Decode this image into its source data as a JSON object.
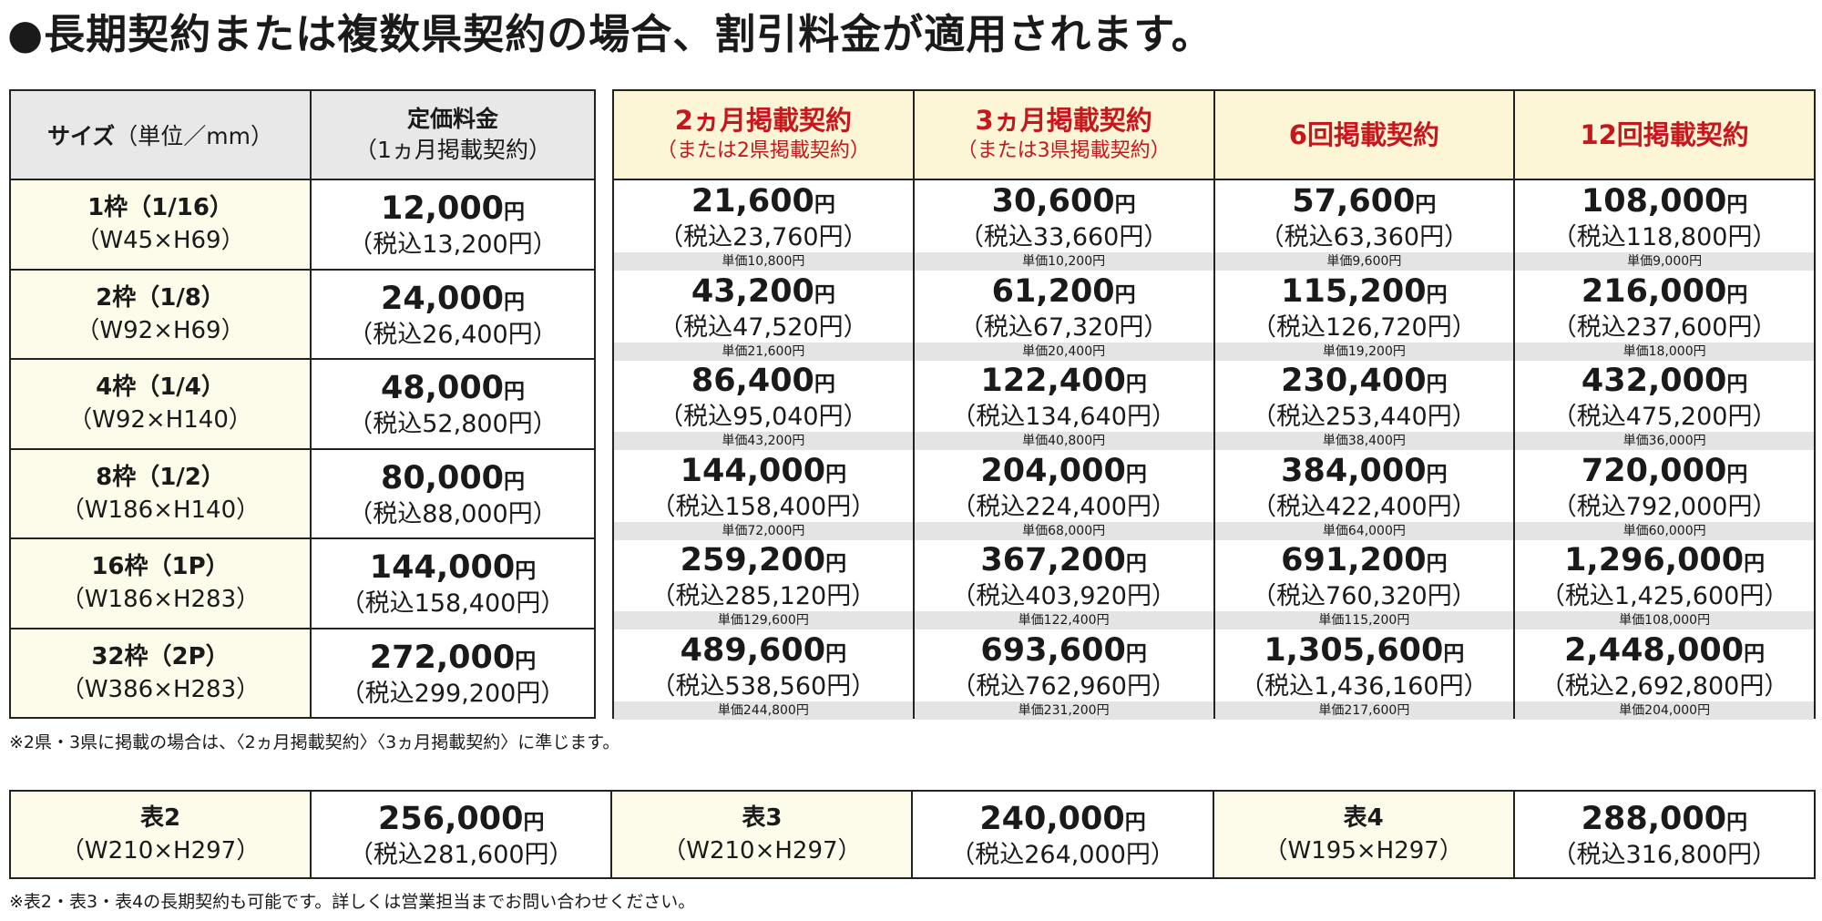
{
  "headline": "●長期契約または複数県契約の場合、割引料金が適用されます。",
  "header": {
    "size_label": "サイズ",
    "size_unit": "（単位／mm）",
    "std_label": "定価料金",
    "std_sub": "（1ヵ月掲載契約）",
    "plans": [
      {
        "label": "2ヵ月掲載契約",
        "sub": "（または2県掲載契約）"
      },
      {
        "label": "3ヵ月掲載契約",
        "sub": "（または3県掲載契約）"
      },
      {
        "label": "6回掲載契約",
        "sub": ""
      },
      {
        "label": "12回掲載契約",
        "sub": ""
      }
    ]
  },
  "yen": "円",
  "rows": [
    {
      "name": "1枠（1/16）",
      "dim": "（W45×H69）",
      "std": {
        "price": "12,000",
        "tax": "（税込13,200円）"
      },
      "plans": [
        {
          "price": "21,600",
          "tax": "（税込23,760円）",
          "unit": "単価10,800円"
        },
        {
          "price": "30,600",
          "tax": "（税込33,660円）",
          "unit": "単価10,200円"
        },
        {
          "price": "57,600",
          "tax": "（税込63,360円）",
          "unit": "単価9,600円"
        },
        {
          "price": "108,000",
          "tax": "（税込118,800円）",
          "unit": "単価9,000円"
        }
      ]
    },
    {
      "name": "2枠（1/8）",
      "dim": "（W92×H69）",
      "std": {
        "price": "24,000",
        "tax": "（税込26,400円）"
      },
      "plans": [
        {
          "price": "43,200",
          "tax": "（税込47,520円）",
          "unit": "単価21,600円"
        },
        {
          "price": "61,200",
          "tax": "（税込67,320円）",
          "unit": "単価20,400円"
        },
        {
          "price": "115,200",
          "tax": "（税込126,720円）",
          "unit": "単価19,200円"
        },
        {
          "price": "216,000",
          "tax": "（税込237,600円）",
          "unit": "単価18,000円"
        }
      ]
    },
    {
      "name": "4枠（1/4）",
      "dim": "（W92×H140）",
      "std": {
        "price": "48,000",
        "tax": "（税込52,800円）"
      },
      "plans": [
        {
          "price": "86,400",
          "tax": "（税込95,040円）",
          "unit": "単価43,200円"
        },
        {
          "price": "122,400",
          "tax": "（税込134,640円）",
          "unit": "単価40,800円"
        },
        {
          "price": "230,400",
          "tax": "（税込253,440円）",
          "unit": "単価38,400円"
        },
        {
          "price": "432,000",
          "tax": "（税込475,200円）",
          "unit": "単価36,000円"
        }
      ]
    },
    {
      "name": "8枠（1/2）",
      "dim": "（W186×H140）",
      "std": {
        "price": "80,000",
        "tax": "（税込88,000円）"
      },
      "plans": [
        {
          "price": "144,000",
          "tax": "（税込158,400円）",
          "unit": "単価72,000円"
        },
        {
          "price": "204,000",
          "tax": "（税込224,400円）",
          "unit": "単価68,000円"
        },
        {
          "price": "384,000",
          "tax": "（税込422,400円）",
          "unit": "単価64,000円"
        },
        {
          "price": "720,000",
          "tax": "（税込792,000円）",
          "unit": "単価60,000円"
        }
      ]
    },
    {
      "name": "16枠（1P）",
      "dim": "（W186×H283）",
      "std": {
        "price": "144,000",
        "tax": "（税込158,400円）"
      },
      "plans": [
        {
          "price": "259,200",
          "tax": "（税込285,120円）",
          "unit": "単価129,600円"
        },
        {
          "price": "367,200",
          "tax": "（税込403,920円）",
          "unit": "単価122,400円"
        },
        {
          "price": "691,200",
          "tax": "（税込760,320円）",
          "unit": "単価115,200円"
        },
        {
          "price": "1,296,000",
          "tax": "（税込1,425,600円）",
          "unit": "単価108,000円"
        }
      ]
    },
    {
      "name": "32枠（2P）",
      "dim": "（W386×H283）",
      "std": {
        "price": "272,000",
        "tax": "（税込299,200円）"
      },
      "plans": [
        {
          "price": "489,600",
          "tax": "（税込538,560円）",
          "unit": "単価244,800円"
        },
        {
          "price": "693,600",
          "tax": "（税込762,960円）",
          "unit": "単価231,200円"
        },
        {
          "price": "1,305,600",
          "tax": "（税込1,436,160円）",
          "unit": "単価217,600円"
        },
        {
          "price": "2,448,000",
          "tax": "（税込2,692,800円）",
          "unit": "単価204,000円"
        }
      ]
    }
  ],
  "note1": "※2県・3県に掲載の場合は、〈2ヵ月掲載契約〉〈3ヵ月掲載契約〉に準じます。",
  "covers": [
    {
      "name": "表2",
      "dim": "（W210×H297）",
      "price": "256,000",
      "tax": "（税込281,600円）"
    },
    {
      "name": "表3",
      "dim": "（W210×H297）",
      "price": "240,000",
      "tax": "（税込264,000円）"
    },
    {
      "name": "表4",
      "dim": "（W195×H297）",
      "price": "288,000",
      "tax": "（税込316,800円）"
    }
  ],
  "note2": "※表2・表3・表4の長期契約も可能です。詳しくは営業担当までお問い合わせください。"
}
